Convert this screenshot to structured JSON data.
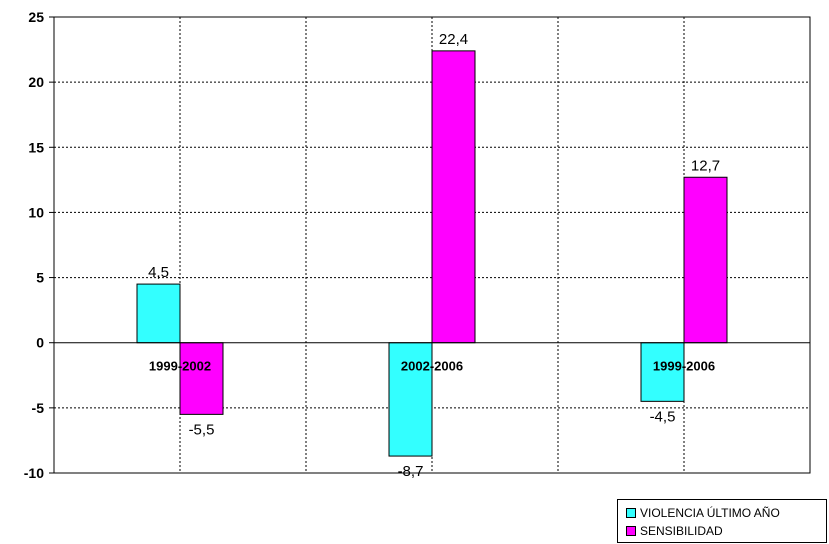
{
  "chart_data": {
    "type": "bar",
    "categories": [
      "1999-2002",
      "2002-2006",
      "1999-2006"
    ],
    "series": [
      {
        "name": "VIOLENCIA ÚLTIMO AÑO",
        "color": "#33ffff",
        "values": [
          4.5,
          -8.7,
          -4.5
        ],
        "value_labels": [
          "4,5",
          "-8,7",
          "-4,5"
        ]
      },
      {
        "name": "SENSIBILIDAD",
        "color": "#ff00ff",
        "values": [
          -5.5,
          22.4,
          12.7
        ],
        "value_labels": [
          "-5,5",
          "22,4",
          "12,7"
        ]
      }
    ],
    "ylim": [
      -10,
      25
    ],
    "yticks": [
      25,
      20,
      15,
      10,
      5,
      0,
      -5,
      -10
    ],
    "ytick_labels": [
      "25",
      "20",
      "15",
      "10",
      "5",
      "0",
      "-5",
      "-10"
    ],
    "grid": true,
    "legend_position": "bottom-right"
  }
}
